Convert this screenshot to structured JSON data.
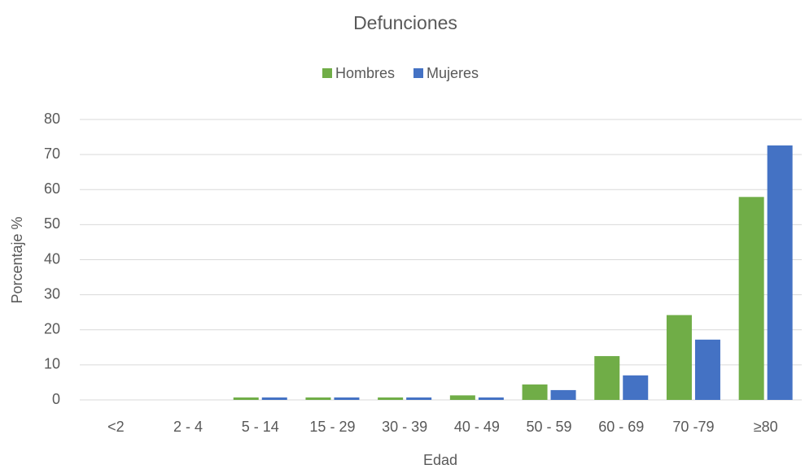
{
  "chart_data": {
    "type": "bar",
    "title": "Defunciones",
    "x_label": "Edad",
    "y_label": "Porcentaje %",
    "categories": [
      "<2",
      "2 - 4",
      "5 - 14",
      "15 - 29",
      "30 - 39",
      "40 - 49",
      "50 - 59",
      "60 - 69",
      "70 -79",
      "≥80"
    ],
    "series": [
      {
        "name": "Hombres",
        "color": "#70ad47",
        "values": [
          0,
          0,
          0.7,
          0.7,
          0.7,
          1.3,
          4.4,
          12.5,
          24.2,
          57.9
        ]
      },
      {
        "name": "Mujeres",
        "color": "#4472c4",
        "values": [
          0,
          0,
          0.7,
          0.7,
          0.7,
          0.7,
          2.8,
          7.0,
          17.2,
          72.6
        ]
      }
    ],
    "ylim": [
      0,
      80
    ],
    "yticks": [
      0,
      10,
      20,
      30,
      40,
      50,
      60,
      70,
      80
    ],
    "grid": true,
    "legend": "top"
  }
}
